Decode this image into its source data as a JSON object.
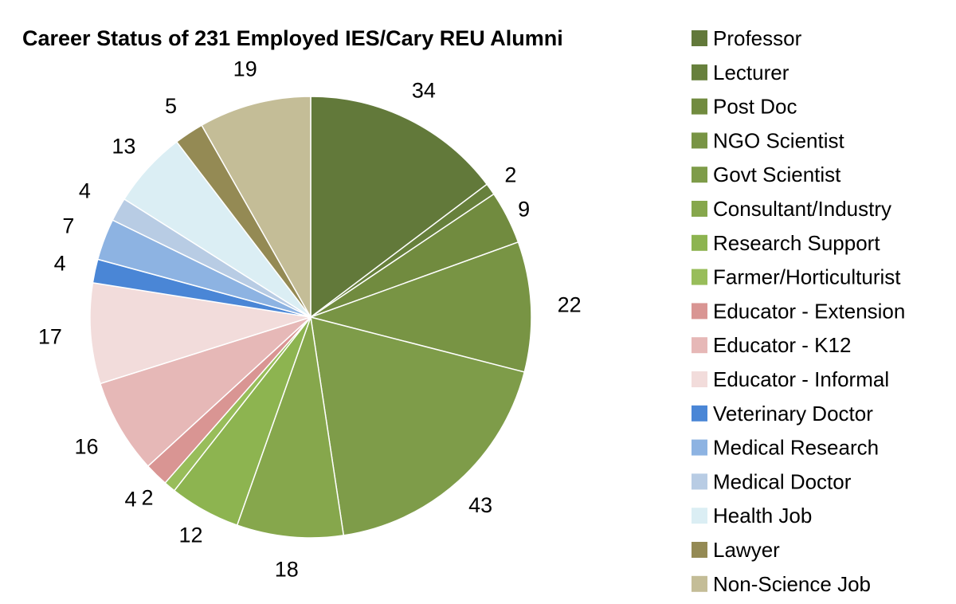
{
  "chart_data": {
    "type": "pie",
    "title": "Career Status of 231 Employed IES/Cary REU Alumni",
    "legend_position": "right",
    "start_angle_deg": 0,
    "direction": "clockwise",
    "slices": [
      {
        "label": "Professor",
        "value": 34,
        "color": "#62793a"
      },
      {
        "label": "Lecturer",
        "value": 2,
        "color": "#67803c"
      },
      {
        "label": "Post Doc",
        "value": 9,
        "color": "#718b3f"
      },
      {
        "label": "NGO Scientist",
        "value": 22,
        "color": "#789444"
      },
      {
        "label": "Govt Scientist",
        "value": 43,
        "color": "#7e9c49"
      },
      {
        "label": "Consultant/Industry",
        "value": 18,
        "color": "#86a74c"
      },
      {
        "label": "Research Support",
        "value": 12,
        "color": "#8db450"
      },
      {
        "label": "Farmer/Horticulturist",
        "value": 2,
        "color": "#98bd5a"
      },
      {
        "label": "Educator - Extension",
        "value": 4,
        "color": "#d99593"
      },
      {
        "label": "Educator - K12",
        "value": 16,
        "color": "#e6b8b7"
      },
      {
        "label": "Educator - Informal",
        "value": 17,
        "color": "#f2dcdb"
      },
      {
        "label": "Veterinary Doctor",
        "value": 4,
        "color": "#4a86d6"
      },
      {
        "label": "Medical Research",
        "value": 7,
        "color": "#8db3e2"
      },
      {
        "label": "Medical Doctor",
        "value": 4,
        "color": "#b8cce4"
      },
      {
        "label": "Health Job",
        "value": 13,
        "color": "#dbeef4"
      },
      {
        "label": "Lawyer",
        "value": 5,
        "color": "#948a54"
      },
      {
        "label": "Non-Science Job",
        "value": 19,
        "color": "#c4bd97"
      }
    ]
  }
}
